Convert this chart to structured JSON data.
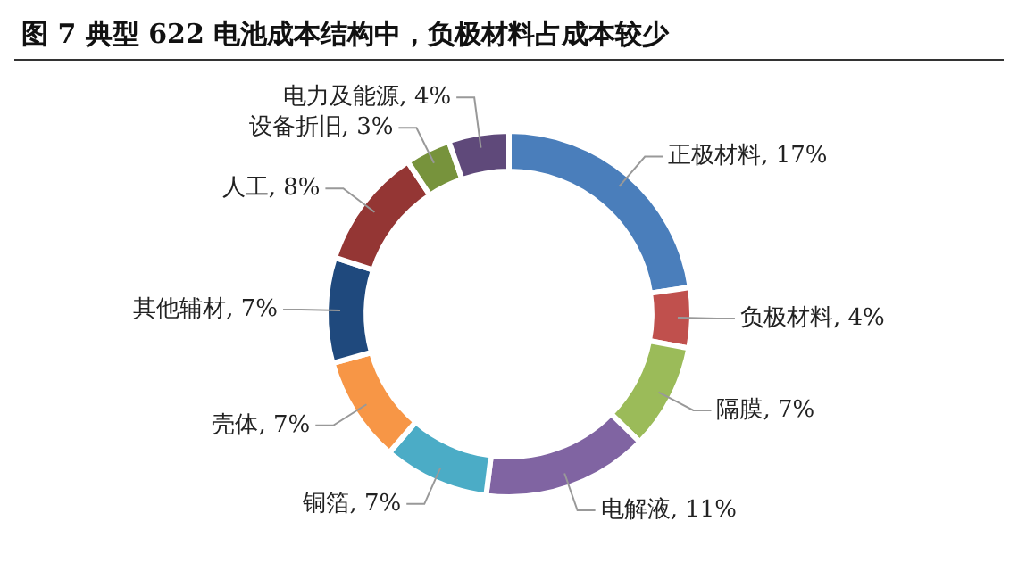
{
  "chart_data": {
    "type": "donut",
    "title": "图 7 典型 622 电池成本结构中，负极材料占成本较少",
    "categories": [
      "正极材料",
      "负极材料",
      "隔膜",
      "电解液",
      "铜箔",
      "壳体",
      "其他辅材",
      "人工",
      "设备折旧",
      "电力及能源"
    ],
    "values": [
      17,
      4,
      7,
      11,
      7,
      7,
      7,
      8,
      3,
      4
    ],
    "value_labels": [
      "17%",
      "4%",
      "7%",
      "11%",
      "7%",
      "7%",
      "7%",
      "8%",
      "3%",
      "4%"
    ],
    "colors": [
      "#4a7ebb",
      "#c0504d",
      "#9bbb59",
      "#8064a2",
      "#4bacc6",
      "#f79646",
      "#1f497d",
      "#943634",
      "#77933c",
      "#5f497a"
    ],
    "legend": false
  }
}
